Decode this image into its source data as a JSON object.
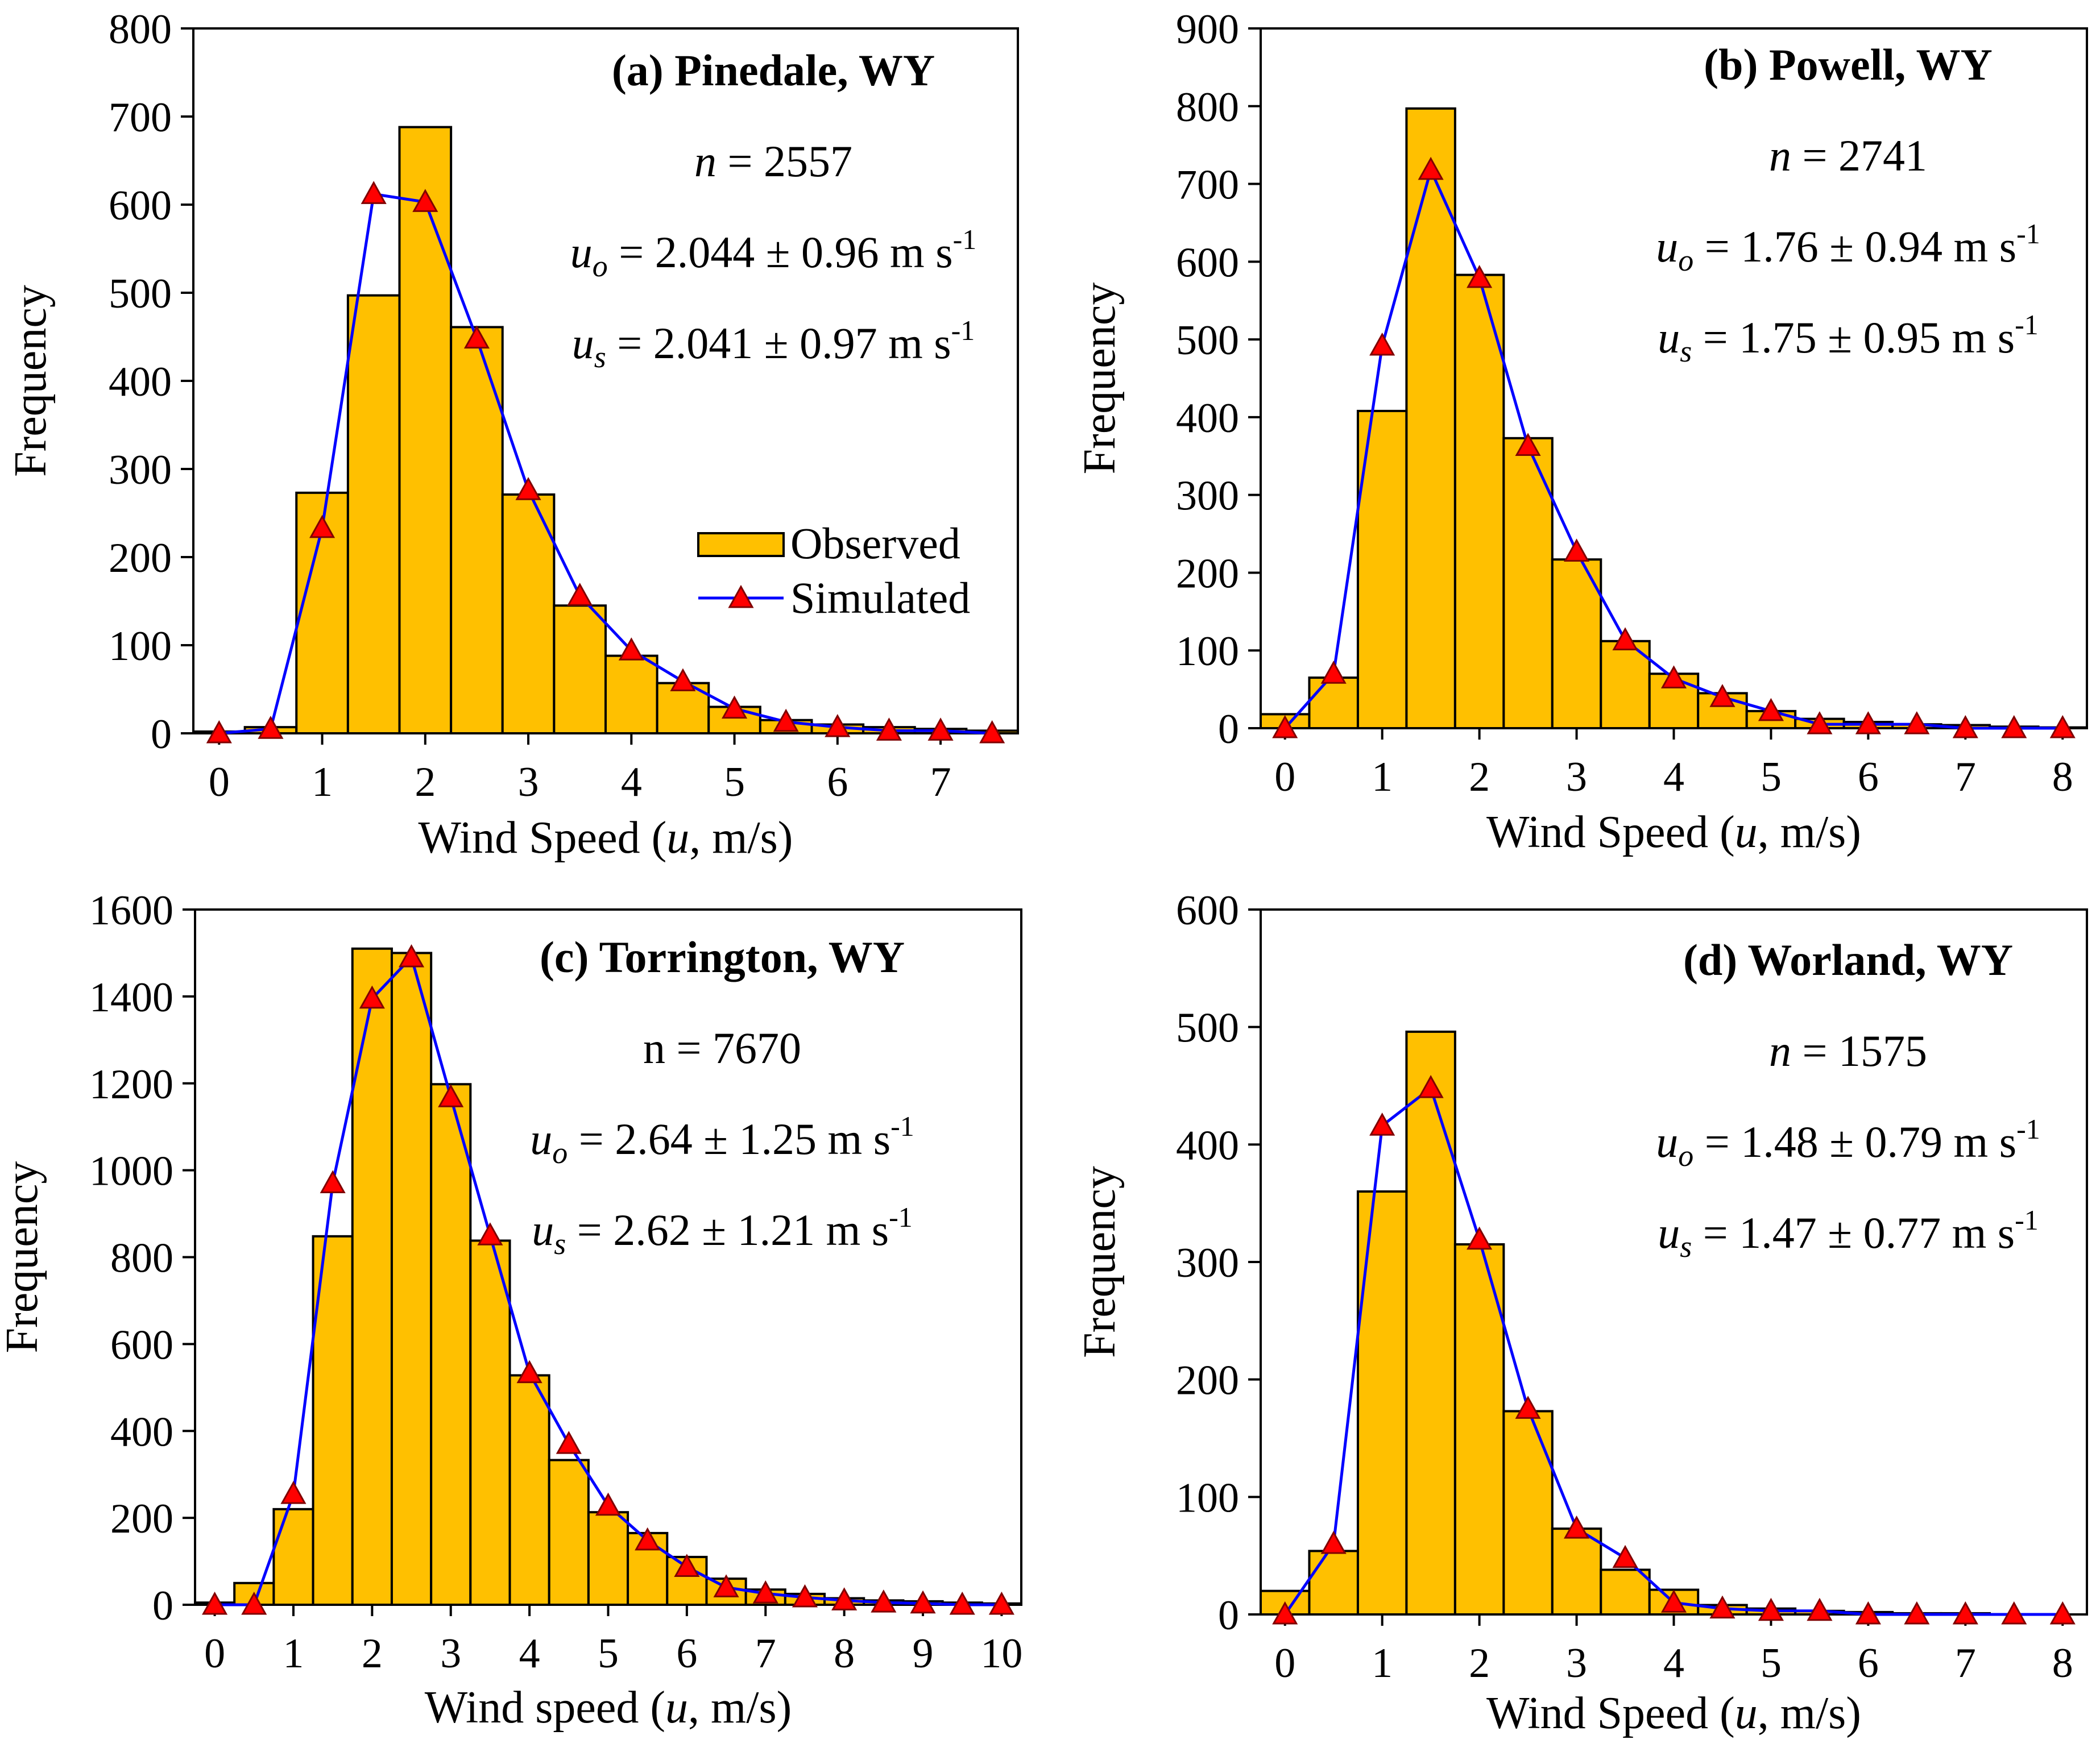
{
  "colors": {
    "bar_fill": "#FFC000",
    "bar_stroke": "#000000",
    "line": "#0000FF",
    "marker_fill": "#FF0000",
    "marker_stroke": "#800000"
  },
  "legend": {
    "observed": "Observed",
    "simulated": "Simulated"
  },
  "chart_data": [
    {
      "type": "bar",
      "title": "(a) Pinedale, WY",
      "n_label": "n",
      "n_value": "= 2557",
      "uo_label": "u",
      "uo_sub": "o",
      "uo_value": "= 2.044 ± 0.96 m s",
      "uo_exp": "-1",
      "us_label": "u",
      "us_sub": "s",
      "us_value": "= 2.041 ± 0.97 m s",
      "us_exp": "-1",
      "xlabel_pre": "Wind Speed (",
      "xlabel_var": "u",
      "xlabel_post": ", m/s)",
      "ylabel": "Frequency",
      "xlim": [
        -0.25,
        7.75
      ],
      "ylim": [
        0,
        800
      ],
      "ystep": 100,
      "xticks": [
        0,
        1,
        2,
        3,
        4,
        5,
        6,
        7
      ],
      "legend_position": "right-middle",
      "observed": {
        "x": [
          0,
          0.5,
          1,
          1.5,
          2,
          2.5,
          3,
          3.5,
          4,
          4.5,
          5,
          5.5,
          6,
          6.5,
          7,
          7.5
        ],
        "values": [
          2,
          7,
          273,
          497,
          688,
          461,
          271,
          145,
          88,
          57,
          30,
          15,
          10,
          7,
          5,
          3
        ]
      },
      "simulated": {
        "x": [
          0,
          0.5,
          1,
          1.5,
          2,
          2.5,
          3,
          3.5,
          4,
          4.5,
          5,
          5.5,
          6,
          6.5,
          7,
          7.5
        ],
        "values": [
          0,
          5,
          233,
          612,
          603,
          448,
          276,
          156,
          94,
          59,
          28,
          13,
          7,
          3,
          3,
          0
        ]
      }
    },
    {
      "type": "bar",
      "title": "(b) Powell, WY",
      "n_label": "n",
      "n_value": "= 2741",
      "uo_label": "u",
      "uo_sub": "o",
      "uo_value": "= 1.76 ± 0.94 m s",
      "uo_exp": "-1",
      "us_label": "u",
      "us_sub": "s",
      "us_value": "= 1.75 ± 0.95 m s",
      "us_exp": "-1",
      "xlabel_pre": "Wind Speed (",
      "xlabel_var": "u",
      "xlabel_post": ", m/s)",
      "ylabel": "Frequency",
      "xlim": [
        -0.25,
        8.25
      ],
      "ylim": [
        0,
        900
      ],
      "ystep": 100,
      "xticks": [
        0,
        1,
        2,
        3,
        4,
        5,
        6,
        7,
        8
      ],
      "observed": {
        "x": [
          0,
          0.5,
          1,
          1.5,
          2,
          2.5,
          3,
          3.5,
          4,
          4.5,
          5,
          5.5,
          6,
          6.5,
          7,
          7.5,
          8
        ],
        "values": [
          18,
          65,
          408,
          797,
          583,
          373,
          217,
          112,
          70,
          45,
          22,
          12,
          8,
          5,
          4,
          2,
          1
        ]
      },
      "simulated": {
        "x": [
          0,
          0.5,
          1,
          1.5,
          2,
          2.5,
          3,
          3.5,
          4,
          4.5,
          5,
          5.5,
          6,
          6.5,
          7,
          7.5,
          8
        ],
        "values": [
          0,
          70,
          492,
          718,
          579,
          363,
          227,
          113,
          64,
          40,
          22,
          5,
          5,
          5,
          0,
          0,
          0
        ]
      }
    },
    {
      "type": "bar",
      "title": "(c) Torrington, WY",
      "n_label": "n",
      "n_value": "= 7670",
      "uo_label": "u",
      "uo_sub": "o",
      "uo_value": "= 2.64 ± 1.25 m s",
      "uo_exp": "-1",
      "us_label": "u",
      "us_sub": "s",
      "us_value": "= 2.62 ± 1.21 m s",
      "us_exp": "-1",
      "xlabel_pre": "Wind speed (",
      "xlabel_var": "u",
      "xlabel_post": ", m/s)",
      "ylabel": "Frequency",
      "xlim": [
        -0.25,
        10.25
      ],
      "ylim": [
        0,
        1600
      ],
      "ystep": 200,
      "xticks": [
        0,
        1,
        2,
        3,
        4,
        5,
        6,
        7,
        8,
        9,
        10
      ],
      "observed": {
        "x": [
          0,
          0.5,
          1,
          1.5,
          2,
          2.5,
          3,
          3.5,
          4,
          4.5,
          5,
          5.5,
          6,
          6.5,
          7,
          7.5,
          8,
          8.5,
          9,
          9.5,
          10
        ],
        "values": [
          5,
          50,
          220,
          848,
          1510,
          1500,
          1198,
          838,
          528,
          333,
          213,
          165,
          110,
          60,
          35,
          25,
          15,
          10,
          8,
          5,
          3
        ]
      },
      "simulated": {
        "x": [
          0,
          0.5,
          1,
          1.5,
          2,
          2.5,
          3,
          3.5,
          4,
          4.5,
          5,
          5.5,
          6,
          6.5,
          7,
          7.5,
          8,
          8.5,
          9,
          9.5,
          10
        ],
        "values": [
          0,
          0,
          255,
          970,
          1395,
          1490,
          1168,
          850,
          533,
          370,
          228,
          148,
          87,
          40,
          26,
          17,
          10,
          5,
          3,
          0,
          0
        ]
      }
    },
    {
      "type": "bar",
      "title": "(d) Worland, WY",
      "n_label": "n",
      "n_value": "= 1575",
      "uo_label": "u",
      "uo_sub": "o",
      "uo_value": "= 1.48 ± 0.79 m s",
      "uo_exp": "-1",
      "us_label": "u",
      "us_sub": "s",
      "us_value": "= 1.47 ± 0.77 m s",
      "us_exp": "-1",
      "xlabel_pre": "Wind Speed (",
      "xlabel_var": "u",
      "xlabel_post": ", m/s)",
      "ylabel": "Frequency",
      "xlim": [
        -0.25,
        8.25
      ],
      "ylim": [
        0,
        600
      ],
      "ystep": 100,
      "xticks": [
        0,
        1,
        2,
        3,
        4,
        5,
        6,
        7,
        8
      ],
      "observed": {
        "x": [
          0,
          0.5,
          1,
          1.5,
          2,
          2.5,
          3,
          3.5,
          4,
          4.5,
          5,
          5.5,
          6,
          6.5,
          7,
          7.5,
          8
        ],
        "values": [
          20,
          54,
          360,
          496,
          315,
          173,
          73,
          38,
          21,
          8,
          5,
          3,
          2,
          1,
          1,
          0,
          0
        ]
      },
      "simulated": {
        "x": [
          0,
          0.5,
          1,
          1.5,
          2,
          2.5,
          3,
          3.5,
          4,
          4.5,
          5,
          5.5,
          6,
          6.5,
          7,
          7.5,
          8
        ],
        "values": [
          0,
          60,
          416,
          448,
          319,
          175,
          73,
          48,
          10,
          5,
          3,
          3,
          0,
          0,
          0,
          0,
          0
        ]
      }
    }
  ]
}
